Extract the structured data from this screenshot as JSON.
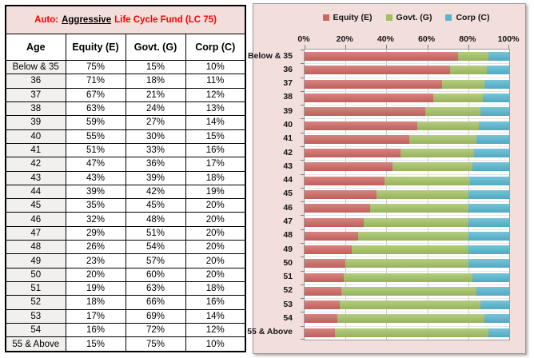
{
  "table": {
    "title": {
      "prefix": "Auto:",
      "emphasis": "Aggressive",
      "suffix": "Life Cycle Fund (LC 75)"
    },
    "columns": [
      "Age",
      "Equity (E)",
      "Govt. (G)",
      "Corp (C)"
    ],
    "rows": [
      [
        "Below & 35",
        "75%",
        "15%",
        "10%"
      ],
      [
        "36",
        "71%",
        "18%",
        "11%"
      ],
      [
        "37",
        "67%",
        "21%",
        "12%"
      ],
      [
        "38",
        "63%",
        "24%",
        "13%"
      ],
      [
        "39",
        "59%",
        "27%",
        "14%"
      ],
      [
        "40",
        "55%",
        "30%",
        "15%"
      ],
      [
        "41",
        "51%",
        "33%",
        "16%"
      ],
      [
        "42",
        "47%",
        "36%",
        "17%"
      ],
      [
        "43",
        "43%",
        "39%",
        "18%"
      ],
      [
        "44",
        "39%",
        "42%",
        "19%"
      ],
      [
        "45",
        "35%",
        "45%",
        "20%"
      ],
      [
        "46",
        "32%",
        "48%",
        "20%"
      ],
      [
        "47",
        "29%",
        "51%",
        "20%"
      ],
      [
        "48",
        "26%",
        "54%",
        "20%"
      ],
      [
        "49",
        "23%",
        "57%",
        "20%"
      ],
      [
        "50",
        "20%",
        "60%",
        "20%"
      ],
      [
        "51",
        "19%",
        "63%",
        "18%"
      ],
      [
        "52",
        "18%",
        "66%",
        "16%"
      ],
      [
        "53",
        "17%",
        "69%",
        "14%"
      ],
      [
        "54",
        "16%",
        "72%",
        "12%"
      ],
      [
        "55 & Above",
        "15%",
        "75%",
        "10%"
      ]
    ]
  },
  "chart_data": {
    "type": "bar",
    "orientation": "horizontal",
    "stacked": true,
    "categories": [
      "Below & 35",
      "36",
      "37",
      "38",
      "39",
      "40",
      "41",
      "42",
      "43",
      "44",
      "45",
      "46",
      "47",
      "48",
      "49",
      "50",
      "51",
      "52",
      "53",
      "54",
      "55 & Above"
    ],
    "series": [
      {
        "name": "Equity (E)",
        "color": "#CD6661",
        "values": [
          75,
          71,
          67,
          63,
          59,
          55,
          51,
          47,
          43,
          39,
          35,
          32,
          29,
          26,
          23,
          20,
          19,
          18,
          17,
          16,
          15
        ]
      },
      {
        "name": "Govt. (G)",
        "color": "#A2C062",
        "values": [
          15,
          18,
          21,
          24,
          27,
          30,
          33,
          36,
          39,
          42,
          45,
          48,
          51,
          54,
          57,
          60,
          63,
          66,
          69,
          72,
          75
        ]
      },
      {
        "name": "Corp (C)",
        "color": "#56B5CF",
        "values": [
          10,
          11,
          12,
          13,
          14,
          15,
          16,
          17,
          18,
          19,
          20,
          20,
          20,
          20,
          20,
          20,
          18,
          16,
          14,
          12,
          10
        ]
      }
    ],
    "xlim": [
      0,
      100
    ],
    "x_tick_labels": [
      "0%",
      "20%",
      "40%",
      "60%",
      "80%",
      "100%"
    ],
    "legend_position": "top",
    "grid": true,
    "plot_bg": "#ffffff",
    "panel_bg": "#F2DEDB"
  }
}
